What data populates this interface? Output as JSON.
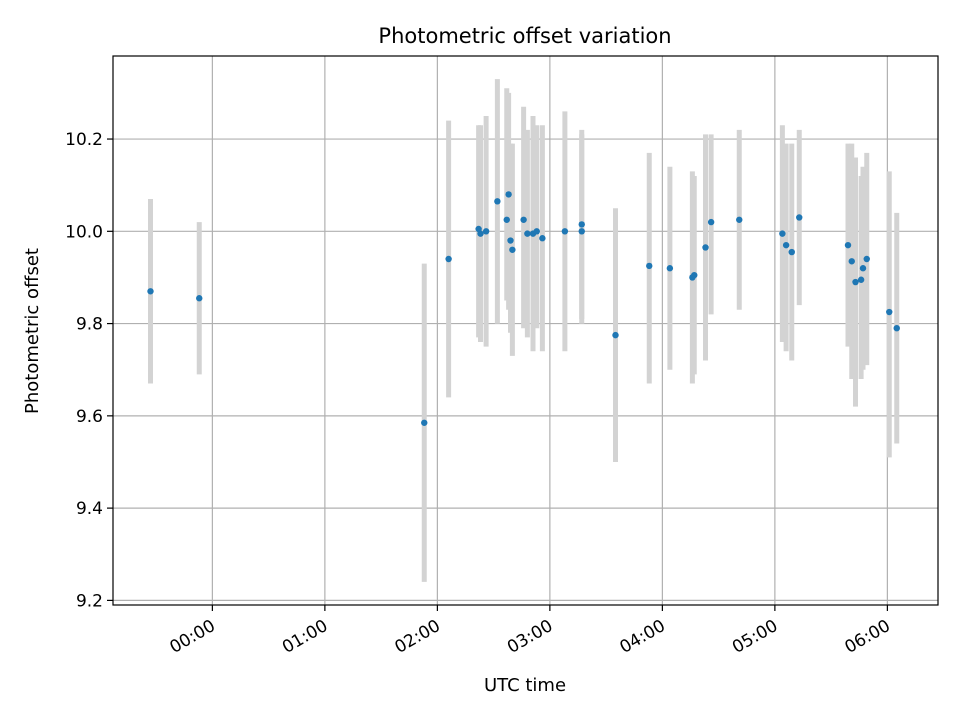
{
  "chart_data": {
    "type": "scatter",
    "title": "Photometric offset variation",
    "xlabel": "UTC time",
    "ylabel": "Photometric offset",
    "xlim": [
      "23:07",
      "06:27"
    ],
    "ylim": [
      9.19,
      10.38
    ],
    "grid": true,
    "x_ticks": [
      "00:00",
      "01:00",
      "02:00",
      "03:00",
      "04:00",
      "05:00",
      "06:00"
    ],
    "y_ticks": [
      "9.2",
      "9.4",
      "9.6",
      "9.8",
      "10.0",
      "10.2"
    ],
    "colors": {
      "points": "#1f77b4",
      "errorbars": "#d3d3d3",
      "grid": "#b0b0b0"
    },
    "points": [
      {
        "x": "23:27",
        "y": 9.87,
        "yerr_low": 9.67,
        "yerr_high": 10.07
      },
      {
        "x": "23:53",
        "y": 9.855,
        "yerr_low": 9.69,
        "yerr_high": 10.02
      },
      {
        "x": "01:53",
        "y": 9.585,
        "yerr_low": 9.24,
        "yerr_high": 9.93
      },
      {
        "x": "02:06",
        "y": 9.94,
        "yerr_low": 9.64,
        "yerr_high": 10.24
      },
      {
        "x": "02:22",
        "y": 10.005,
        "yerr_low": 9.77,
        "yerr_high": 10.23
      },
      {
        "x": "02:23",
        "y": 9.995,
        "yerr_low": 9.76,
        "yerr_high": 10.23
      },
      {
        "x": "02:26",
        "y": 10.0,
        "yerr_low": 9.75,
        "yerr_high": 10.25
      },
      {
        "x": "02:32",
        "y": 10.065,
        "yerr_low": 9.8,
        "yerr_high": 10.33
      },
      {
        "x": "02:37",
        "y": 10.025,
        "yerr_low": 9.85,
        "yerr_high": 10.31
      },
      {
        "x": "02:38",
        "y": 10.08,
        "yerr_low": 9.83,
        "yerr_high": 10.3
      },
      {
        "x": "02:39",
        "y": 9.98,
        "yerr_low": 9.78,
        "yerr_high": 10.19
      },
      {
        "x": "02:40",
        "y": 9.96,
        "yerr_low": 9.73,
        "yerr_high": 10.19
      },
      {
        "x": "02:46",
        "y": 10.025,
        "yerr_low": 9.79,
        "yerr_high": 10.27
      },
      {
        "x": "02:48",
        "y": 9.995,
        "yerr_low": 9.77,
        "yerr_high": 10.22
      },
      {
        "x": "02:51",
        "y": 9.995,
        "yerr_low": 9.74,
        "yerr_high": 10.25
      },
      {
        "x": "02:53",
        "y": 10.0,
        "yerr_low": 9.79,
        "yerr_high": 10.23
      },
      {
        "x": "02:56",
        "y": 9.985,
        "yerr_low": 9.74,
        "yerr_high": 10.23
      },
      {
        "x": "03:08",
        "y": 10.0,
        "yerr_low": 9.74,
        "yerr_high": 10.26
      },
      {
        "x": "03:17",
        "y": 10.015,
        "yerr_low": 9.81,
        "yerr_high": 10.22
      },
      {
        "x": "03:17",
        "y": 10.0,
        "yerr_low": 9.8,
        "yerr_high": 10.21
      },
      {
        "x": "03:35",
        "y": 9.775,
        "yerr_low": 9.5,
        "yerr_high": 10.05
      },
      {
        "x": "03:53",
        "y": 9.925,
        "yerr_low": 9.67,
        "yerr_high": 10.17
      },
      {
        "x": "04:04",
        "y": 9.92,
        "yerr_low": 9.7,
        "yerr_high": 10.14
      },
      {
        "x": "04:16",
        "y": 9.9,
        "yerr_low": 9.67,
        "yerr_high": 10.13
      },
      {
        "x": "04:17",
        "y": 9.905,
        "yerr_low": 9.69,
        "yerr_high": 10.12
      },
      {
        "x": "04:23",
        "y": 9.965,
        "yerr_low": 9.72,
        "yerr_high": 10.21
      },
      {
        "x": "04:26",
        "y": 10.02,
        "yerr_low": 9.82,
        "yerr_high": 10.21
      },
      {
        "x": "04:41",
        "y": 10.025,
        "yerr_low": 9.83,
        "yerr_high": 10.22
      },
      {
        "x": "05:04",
        "y": 9.995,
        "yerr_low": 9.76,
        "yerr_high": 10.23
      },
      {
        "x": "05:06",
        "y": 9.97,
        "yerr_low": 9.74,
        "yerr_high": 10.19
      },
      {
        "x": "05:09",
        "y": 9.955,
        "yerr_low": 9.72,
        "yerr_high": 10.19
      },
      {
        "x": "05:13",
        "y": 10.03,
        "yerr_low": 9.84,
        "yerr_high": 10.22
      },
      {
        "x": "05:39",
        "y": 9.97,
        "yerr_low": 9.75,
        "yerr_high": 10.19
      },
      {
        "x": "05:41",
        "y": 9.935,
        "yerr_low": 9.68,
        "yerr_high": 10.19
      },
      {
        "x": "05:43",
        "y": 9.89,
        "yerr_low": 9.62,
        "yerr_high": 10.16
      },
      {
        "x": "05:46",
        "y": 9.895,
        "yerr_low": 9.68,
        "yerr_high": 10.12
      },
      {
        "x": "05:47",
        "y": 9.92,
        "yerr_low": 9.7,
        "yerr_high": 10.14
      },
      {
        "x": "05:49",
        "y": 9.94,
        "yerr_low": 9.71,
        "yerr_high": 10.17
      },
      {
        "x": "06:01",
        "y": 9.825,
        "yerr_low": 9.51,
        "yerr_high": 10.13
      },
      {
        "x": "06:05",
        "y": 9.79,
        "yerr_low": 9.54,
        "yerr_high": 10.04
      }
    ]
  }
}
